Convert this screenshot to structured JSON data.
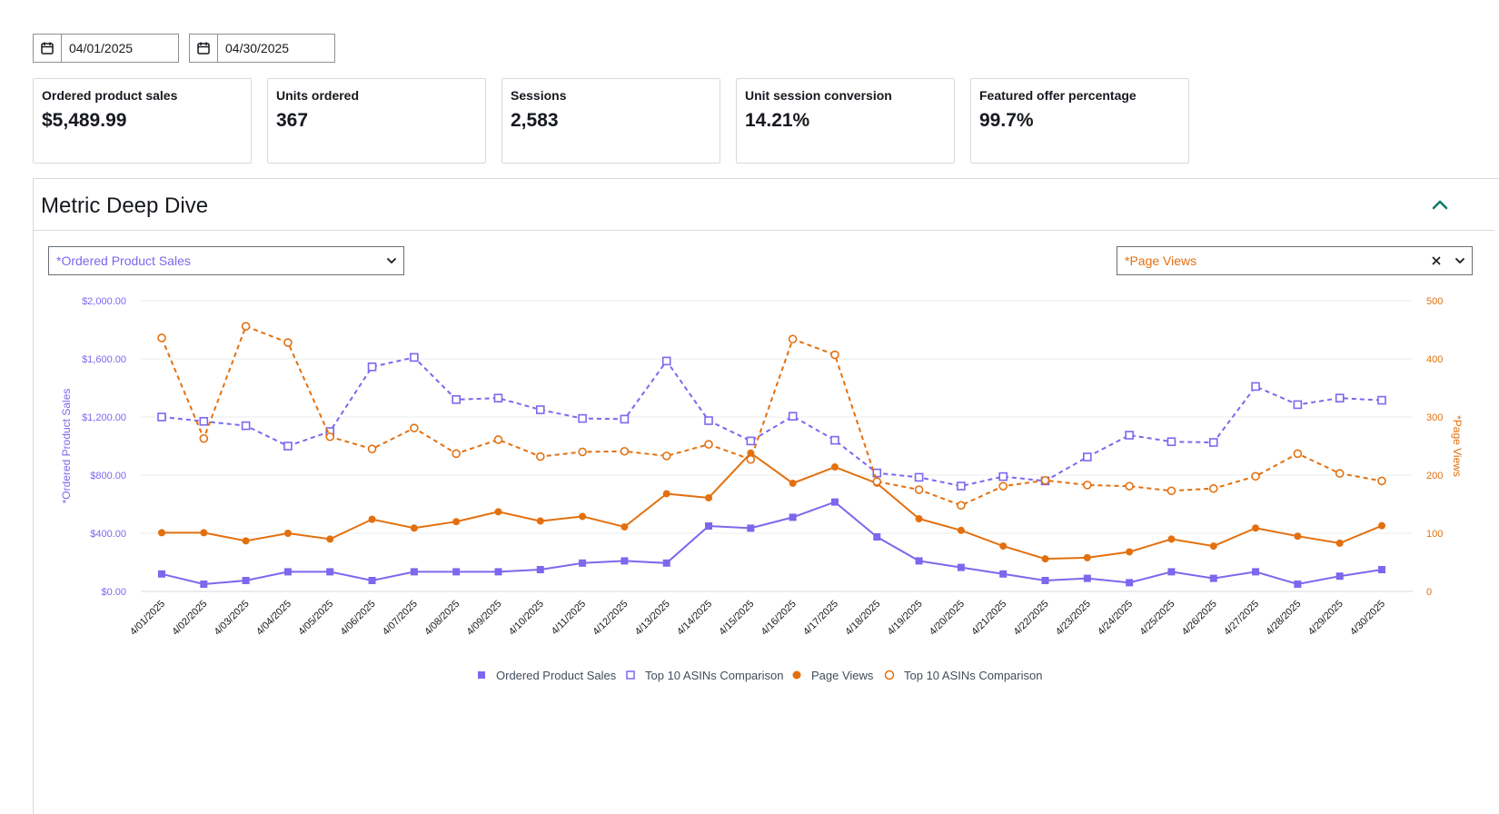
{
  "date_range": {
    "start": "04/01/2025",
    "end": "04/30/2025"
  },
  "kpis": [
    {
      "label": "Ordered product sales",
      "value": "$5,489.99"
    },
    {
      "label": "Units ordered",
      "value": "367"
    },
    {
      "label": "Sessions",
      "value": "2,583"
    },
    {
      "label": "Unit session conversion",
      "value": "14.21%"
    },
    {
      "label": "Featured offer percentage",
      "value": "99.7%"
    }
  ],
  "panel": {
    "title": "Metric Deep Dive"
  },
  "selectors": {
    "left_metric": "*Ordered Product Sales",
    "right_metric": "*Page Views"
  },
  "colors": {
    "purple": "#7b68ee",
    "orange": "#e3700f",
    "border": "#d5dbdb",
    "text": "#16191f",
    "teal": "#0f7b6c"
  },
  "icons": {
    "calendar": "calendar-icon",
    "collapse": "chevron-up-icon",
    "dropdown": "chevron-down-icon",
    "clear": "close-icon"
  },
  "chart_data": {
    "type": "line",
    "x": [
      "4/01/2025",
      "4/02/2025",
      "4/03/2025",
      "4/04/2025",
      "4/05/2025",
      "4/06/2025",
      "4/07/2025",
      "4/08/2025",
      "4/09/2025",
      "4/10/2025",
      "4/11/2025",
      "4/12/2025",
      "4/13/2025",
      "4/14/2025",
      "4/15/2025",
      "4/16/2025",
      "4/17/2025",
      "4/18/2025",
      "4/19/2025",
      "4/20/2025",
      "4/21/2025",
      "4/22/2025",
      "4/23/2025",
      "4/24/2025",
      "4/25/2025",
      "4/26/2025",
      "4/27/2025",
      "4/28/2025",
      "4/29/2025",
      "4/30/2025"
    ],
    "y_left": {
      "label": "*Ordered Product Sales",
      "ticks": [
        "$0.00",
        "$400.00",
        "$800.00",
        "$1,200.00",
        "$1,600.00",
        "$2,000.00"
      ],
      "range": [
        0,
        2000
      ]
    },
    "y_right": {
      "label": "*Page Views",
      "ticks": [
        "0",
        "100",
        "200",
        "300",
        "400",
        "500"
      ],
      "range": [
        0,
        500
      ]
    },
    "series": [
      {
        "name": "Ordered Product Sales",
        "axis": "left",
        "color": "#7b68ee",
        "marker": "square-filled",
        "dashed": false,
        "values": [
          120,
          50,
          75,
          135,
          135,
          75,
          135,
          135,
          135,
          150,
          195,
          210,
          195,
          450,
          435,
          510,
          615,
          375,
          210,
          165,
          120,
          75,
          90,
          60,
          135,
          90,
          135,
          50,
          105,
          150
        ]
      },
      {
        "name": "Top 10 ASINs Comparison",
        "axis": "left",
        "color": "#7b68ee",
        "marker": "square-open",
        "dashed": true,
        "values": [
          1200,
          1170,
          1140,
          1000,
          1100,
          1545,
          1610,
          1320,
          1330,
          1250,
          1190,
          1185,
          1585,
          1175,
          1035,
          1205,
          1040,
          815,
          785,
          725,
          790,
          760,
          925,
          1075,
          1030,
          1025,
          1410,
          1285,
          1330,
          1315
        ]
      },
      {
        "name": "Page Views",
        "axis": "right",
        "color": "#e3700f",
        "marker": "circle-filled",
        "dashed": false,
        "values": [
          101,
          101,
          87,
          100,
          90,
          124,
          109,
          120,
          137,
          121,
          129,
          111,
          168,
          161,
          238,
          186,
          214,
          186,
          125,
          105,
          78,
          56,
          58,
          68,
          90,
          78,
          109,
          95,
          83,
          113
        ]
      },
      {
        "name": "Top 10 ASINs Comparison",
        "axis": "right",
        "color": "#e3700f",
        "marker": "circle-open",
        "dashed": true,
        "values": [
          436,
          263,
          456,
          428,
          266,
          245,
          281,
          237,
          261,
          232,
          240,
          241,
          233,
          253,
          227,
          434,
          407,
          189,
          175,
          148,
          181,
          191,
          183,
          181,
          173,
          177,
          198,
          237,
          203,
          190
        ]
      }
    ],
    "grid": true,
    "legend": "bottom-center"
  }
}
